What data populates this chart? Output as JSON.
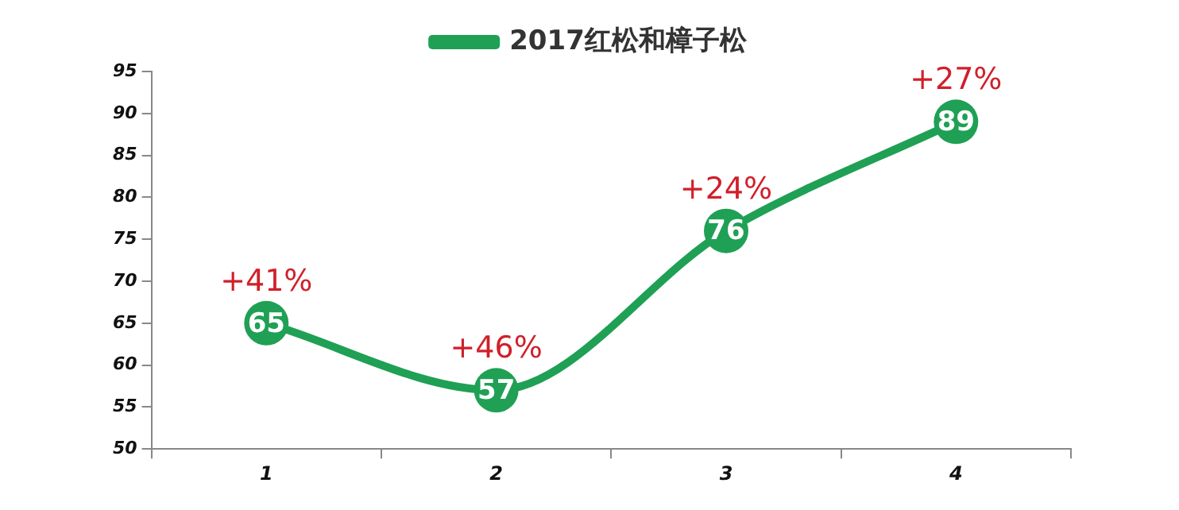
{
  "chart_data": {
    "type": "line",
    "categories": [
      "1",
      "2",
      "3",
      "4"
    ],
    "series": [
      {
        "name": "2017红松和樟子松",
        "color": "#1fa055",
        "values": [
          65,
          57,
          76,
          89
        ]
      }
    ],
    "ylim": [
      50,
      95
    ],
    "yticks": [
      50,
      55,
      60,
      65,
      70,
      75,
      80,
      85,
      90,
      95
    ],
    "grid": false,
    "legend": "top",
    "marker": "circle",
    "line_style": "solid",
    "data_labels": true,
    "annotations": [
      {
        "text": "+41%",
        "x": "1",
        "y": 65
      },
      {
        "text": "+46%",
        "x": "2",
        "y": 57
      },
      {
        "text": "+24%",
        "x": "3",
        "y": 76
      },
      {
        "text": "+27%",
        "x": "4",
        "y": 89
      }
    ]
  }
}
